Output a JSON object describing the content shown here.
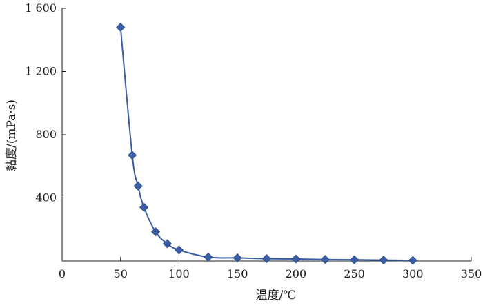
{
  "chart_data": {
    "type": "line",
    "title": "",
    "xlabel": "温度/℃",
    "ylabel": "黏度/(mPa·s)",
    "xlim": [
      0,
      350
    ],
    "ylim": [
      0,
      1600
    ],
    "x_ticks": [
      0,
      50,
      100,
      150,
      200,
      250,
      300,
      350
    ],
    "x_tick_labels": [
      "0",
      "50",
      "100",
      "150",
      "200",
      "250",
      "300",
      "350"
    ],
    "y_ticks": [
      400,
      800,
      1200,
      1600
    ],
    "y_tick_labels": [
      "400",
      "800",
      "1 200",
      "1 600"
    ],
    "grid": false,
    "legend": "none",
    "marker": "diamond",
    "color": "#3a5ea6",
    "series": [
      {
        "x": [
          50,
          60,
          65,
          70,
          80,
          90,
          100,
          125,
          150,
          175,
          200,
          225,
          250,
          275,
          300
        ],
        "values": [
          1480,
          670,
          475,
          340,
          185,
          110,
          70,
          25,
          20,
          15,
          13,
          10,
          8,
          6,
          4
        ]
      }
    ]
  }
}
